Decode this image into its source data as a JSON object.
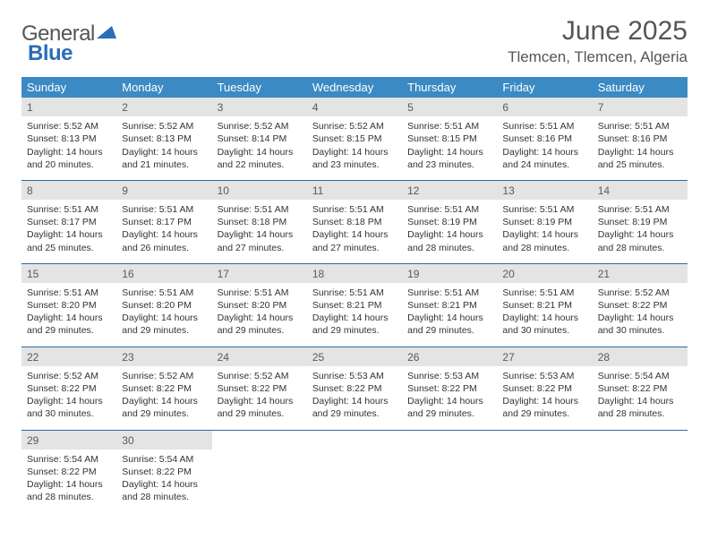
{
  "logo": {
    "part1": "General",
    "part2": "Blue"
  },
  "title": "June 2025",
  "location": "Tlemcen, Tlemcen, Algeria",
  "colors": {
    "header_bg": "#3b8ac4",
    "header_text": "#ffffff",
    "daynum_bg": "#e4e4e4",
    "daynum_text": "#5a5a5a",
    "row_border": "#2f6aa8",
    "body_text": "#333333",
    "title_text": "#555555",
    "logo_blue": "#2a6db8"
  },
  "weekdays": [
    "Sunday",
    "Monday",
    "Tuesday",
    "Wednesday",
    "Thursday",
    "Friday",
    "Saturday"
  ],
  "weeks": [
    [
      {
        "n": "1",
        "sr": "5:52 AM",
        "ss": "8:13 PM",
        "dl": "14 hours and 20 minutes."
      },
      {
        "n": "2",
        "sr": "5:52 AM",
        "ss": "8:13 PM",
        "dl": "14 hours and 21 minutes."
      },
      {
        "n": "3",
        "sr": "5:52 AM",
        "ss": "8:14 PM",
        "dl": "14 hours and 22 minutes."
      },
      {
        "n": "4",
        "sr": "5:52 AM",
        "ss": "8:15 PM",
        "dl": "14 hours and 23 minutes."
      },
      {
        "n": "5",
        "sr": "5:51 AM",
        "ss": "8:15 PM",
        "dl": "14 hours and 23 minutes."
      },
      {
        "n": "6",
        "sr": "5:51 AM",
        "ss": "8:16 PM",
        "dl": "14 hours and 24 minutes."
      },
      {
        "n": "7",
        "sr": "5:51 AM",
        "ss": "8:16 PM",
        "dl": "14 hours and 25 minutes."
      }
    ],
    [
      {
        "n": "8",
        "sr": "5:51 AM",
        "ss": "8:17 PM",
        "dl": "14 hours and 25 minutes."
      },
      {
        "n": "9",
        "sr": "5:51 AM",
        "ss": "8:17 PM",
        "dl": "14 hours and 26 minutes."
      },
      {
        "n": "10",
        "sr": "5:51 AM",
        "ss": "8:18 PM",
        "dl": "14 hours and 27 minutes."
      },
      {
        "n": "11",
        "sr": "5:51 AM",
        "ss": "8:18 PM",
        "dl": "14 hours and 27 minutes."
      },
      {
        "n": "12",
        "sr": "5:51 AM",
        "ss": "8:19 PM",
        "dl": "14 hours and 28 minutes."
      },
      {
        "n": "13",
        "sr": "5:51 AM",
        "ss": "8:19 PM",
        "dl": "14 hours and 28 minutes."
      },
      {
        "n": "14",
        "sr": "5:51 AM",
        "ss": "8:19 PM",
        "dl": "14 hours and 28 minutes."
      }
    ],
    [
      {
        "n": "15",
        "sr": "5:51 AM",
        "ss": "8:20 PM",
        "dl": "14 hours and 29 minutes."
      },
      {
        "n": "16",
        "sr": "5:51 AM",
        "ss": "8:20 PM",
        "dl": "14 hours and 29 minutes."
      },
      {
        "n": "17",
        "sr": "5:51 AM",
        "ss": "8:20 PM",
        "dl": "14 hours and 29 minutes."
      },
      {
        "n": "18",
        "sr": "5:51 AM",
        "ss": "8:21 PM",
        "dl": "14 hours and 29 minutes."
      },
      {
        "n": "19",
        "sr": "5:51 AM",
        "ss": "8:21 PM",
        "dl": "14 hours and 29 minutes."
      },
      {
        "n": "20",
        "sr": "5:51 AM",
        "ss": "8:21 PM",
        "dl": "14 hours and 30 minutes."
      },
      {
        "n": "21",
        "sr": "5:52 AM",
        "ss": "8:22 PM",
        "dl": "14 hours and 30 minutes."
      }
    ],
    [
      {
        "n": "22",
        "sr": "5:52 AM",
        "ss": "8:22 PM",
        "dl": "14 hours and 30 minutes."
      },
      {
        "n": "23",
        "sr": "5:52 AM",
        "ss": "8:22 PM",
        "dl": "14 hours and 29 minutes."
      },
      {
        "n": "24",
        "sr": "5:52 AM",
        "ss": "8:22 PM",
        "dl": "14 hours and 29 minutes."
      },
      {
        "n": "25",
        "sr": "5:53 AM",
        "ss": "8:22 PM",
        "dl": "14 hours and 29 minutes."
      },
      {
        "n": "26",
        "sr": "5:53 AM",
        "ss": "8:22 PM",
        "dl": "14 hours and 29 minutes."
      },
      {
        "n": "27",
        "sr": "5:53 AM",
        "ss": "8:22 PM",
        "dl": "14 hours and 29 minutes."
      },
      {
        "n": "28",
        "sr": "5:54 AM",
        "ss": "8:22 PM",
        "dl": "14 hours and 28 minutes."
      }
    ],
    [
      {
        "n": "29",
        "sr": "5:54 AM",
        "ss": "8:22 PM",
        "dl": "14 hours and 28 minutes."
      },
      {
        "n": "30",
        "sr": "5:54 AM",
        "ss": "8:22 PM",
        "dl": "14 hours and 28 minutes."
      },
      null,
      null,
      null,
      null,
      null
    ]
  ],
  "labels": {
    "sunrise": "Sunrise: ",
    "sunset": "Sunset: ",
    "daylight": "Daylight: "
  }
}
